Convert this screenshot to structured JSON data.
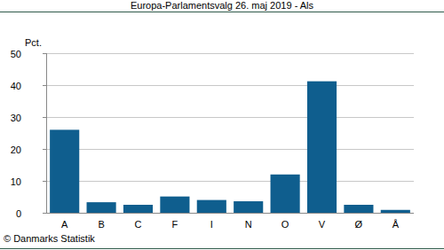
{
  "chart_data": {
    "type": "bar",
    "title": "Europa-Parlamentsvalg 26. maj 2019 - Als",
    "y_label": "Pct.",
    "source": "© Danmarks Statistik",
    "categories": [
      "A",
      "B",
      "C",
      "F",
      "I",
      "N",
      "O",
      "V",
      "Ø",
      "Å"
    ],
    "values": [
      26.0,
      3.3,
      2.5,
      5.1,
      4.0,
      3.6,
      12.0,
      41.2,
      2.5,
      0.9
    ],
    "color": "#0f5e8e",
    "ylim": [
      0,
      50
    ],
    "yticks": [
      0,
      10,
      20,
      30,
      40,
      50
    ],
    "grid": true
  }
}
